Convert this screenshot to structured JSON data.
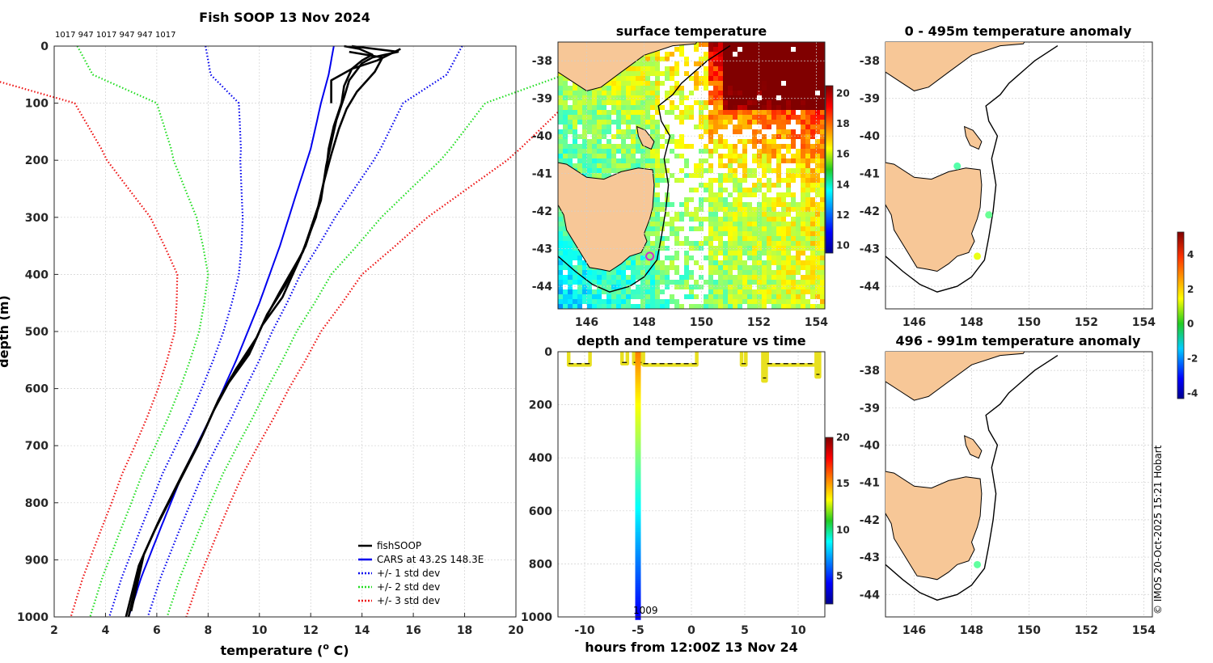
{
  "colors": {
    "land": "#f7c797",
    "fish": "#000000",
    "cars": "#0000ee",
    "std1": "#0000ee",
    "std2": "#22dd22",
    "std3": "#ee1111",
    "grid": "#d0d0d0"
  },
  "copyright": "© IMOS 20-Oct-2025 15:21 Hobart",
  "chart_data": [
    {
      "id": "profile",
      "type": "line",
      "title": "Fish SOOP 13 Nov 2024",
      "subtitle": "1017 947 1017 947 947 1017",
      "xlabel": "temperature (",
      "xlabel_sup": "o",
      "xlabel_end": " C)",
      "ylabel": "depth (m)",
      "xlim": [
        2,
        20
      ],
      "ylim": [
        0,
        1000
      ],
      "xticks": [
        2,
        4,
        6,
        8,
        10,
        12,
        14,
        16,
        18,
        20
      ],
      "yticks": [
        0,
        100,
        200,
        300,
        400,
        500,
        600,
        700,
        800,
        900,
        1000
      ],
      "legend": [
        "fishSOOP",
        "CARS at 43.2S 148.3E",
        "+/- 1 std dev",
        "+/- 2 std dev",
        "+/- 3 std dev"
      ],
      "cars_mean": [
        [
          12.9,
          0
        ],
        [
          12.7,
          50
        ],
        [
          12.4,
          100
        ],
        [
          12.0,
          180
        ],
        [
          11.5,
          250
        ],
        [
          10.8,
          350
        ],
        [
          10.0,
          450
        ],
        [
          9.1,
          550
        ],
        [
          8.1,
          650
        ],
        [
          7.0,
          750
        ],
        [
          6.1,
          850
        ],
        [
          5.4,
          930
        ],
        [
          4.9,
          1000
        ]
      ],
      "sigma": [
        [
          5,
          0
        ],
        [
          4.6,
          50
        ],
        [
          3.2,
          100
        ],
        [
          2.6,
          200
        ],
        [
          1.8,
          300
        ],
        [
          1.2,
          400
        ],
        [
          0.95,
          500
        ],
        [
          0.85,
          600
        ],
        [
          0.8,
          700
        ],
        [
          0.77,
          800
        ],
        [
          0.76,
          900
        ],
        [
          0.75,
          1000
        ]
      ],
      "fish_profiles": [
        [
          [
            13.3,
            0
          ],
          [
            13.9,
            5
          ],
          [
            14.4,
            15
          ],
          [
            14.0,
            25
          ],
          [
            13.6,
            40
          ],
          [
            13.3,
            70
          ],
          [
            13.2,
            100
          ],
          [
            12.9,
            140
          ],
          [
            12.7,
            180
          ],
          [
            12.6,
            220
          ],
          [
            12.3,
            280
          ],
          [
            11.7,
            360
          ],
          [
            10.8,
            430
          ],
          [
            10.2,
            480
          ],
          [
            9.7,
            530
          ],
          [
            8.9,
            580
          ],
          [
            8.3,
            630
          ],
          [
            7.7,
            690
          ],
          [
            6.9,
            760
          ],
          [
            6.0,
            840
          ],
          [
            5.4,
            900
          ],
          [
            4.9,
            1000
          ]
        ],
        [
          [
            13.6,
            0
          ],
          [
            14.5,
            5
          ],
          [
            15.4,
            10
          ],
          [
            14.4,
            20
          ],
          [
            14.0,
            30
          ],
          [
            13.5,
            60
          ],
          [
            13.3,
            90
          ],
          [
            13.0,
            130
          ],
          [
            12.8,
            170
          ],
          [
            12.6,
            210
          ],
          [
            12.4,
            270
          ],
          [
            11.8,
            350
          ],
          [
            11.0,
            420
          ],
          [
            10.3,
            470
          ],
          [
            9.9,
            510
          ],
          [
            9.1,
            565
          ],
          [
            8.4,
            620
          ],
          [
            7.8,
            680
          ],
          [
            7.0,
            750
          ],
          [
            6.1,
            830
          ],
          [
            5.5,
            890
          ],
          [
            5.0,
            990
          ]
        ],
        [
          [
            13.5,
            10
          ],
          [
            14.8,
            20
          ],
          [
            14.5,
            45
          ],
          [
            14.2,
            60
          ],
          [
            13.8,
            80
          ],
          [
            13.4,
            110
          ],
          [
            13.1,
            145
          ],
          [
            12.8,
            190
          ],
          [
            12.5,
            240
          ],
          [
            12.2,
            300
          ],
          [
            11.6,
            370
          ],
          [
            10.9,
            440
          ],
          [
            10.1,
            490
          ],
          [
            9.6,
            540
          ],
          [
            8.8,
            590
          ],
          [
            8.2,
            640
          ],
          [
            7.6,
            700
          ],
          [
            6.8,
            770
          ],
          [
            5.9,
            850
          ],
          [
            5.3,
            910
          ],
          [
            4.8,
            1000
          ]
        ],
        [
          [
            12.8,
            100
          ],
          [
            12.8,
            60
          ],
          [
            13.6,
            40
          ],
          [
            14.6,
            25
          ],
          [
            15.5,
            5
          ]
        ]
      ]
    },
    {
      "id": "sst",
      "type": "heatmap",
      "title": "surface temperature",
      "xticks": [
        "146",
        "148",
        "150",
        "152",
        "154"
      ],
      "yticks": [
        "-38",
        "-39",
        "-40",
        "-41",
        "-42",
        "-43",
        "-44"
      ],
      "colorbar_ticks": [
        "10",
        "12",
        "14",
        "16",
        "18",
        "20"
      ],
      "clim": [
        9.5,
        20.5
      ],
      "marker": {
        "lon": 148.2,
        "lat": -43.2
      }
    },
    {
      "id": "timeseries",
      "type": "scatter",
      "title": "depth and temperature vs time",
      "xlabel": "hours from 12:00Z 13 Nov 24",
      "xlim": [
        -12.5,
        12.5
      ],
      "ylim": [
        0,
        1000
      ],
      "xticks": [
        "-10",
        "-5",
        "0",
        "5",
        "10"
      ],
      "yticks": [
        "0",
        "200",
        "400",
        "600",
        "800",
        "1000"
      ],
      "colorbar_ticks": [
        "5",
        "10",
        "15",
        "20"
      ],
      "clim": [
        2,
        20
      ],
      "annotation": "1009",
      "deep_cast": {
        "t": -5,
        "max_depth": 990
      },
      "shallow_casts": [
        [
          -11.5,
          -9.5,
          50
        ],
        [
          -6.5,
          -6.0,
          45
        ],
        [
          -5.4,
          -5.1,
          45
        ],
        [
          -4.9,
          -4.6,
          45
        ],
        [
          -4.5,
          0.5,
          50
        ],
        [
          4.7,
          5.1,
          50
        ],
        [
          6.7,
          7.0,
          110
        ],
        [
          7.1,
          11.7,
          50
        ],
        [
          11.7,
          12.0,
          95
        ]
      ]
    },
    {
      "id": "anom_upper",
      "type": "scatter",
      "title": "0 - 495m temperature anomaly",
      "xticks": [
        "146",
        "148",
        "150",
        "152",
        "154"
      ],
      "yticks": [
        "-38",
        "-39",
        "-40",
        "-41",
        "-42",
        "-43",
        "-44"
      ],
      "points": [
        {
          "lon": 147.5,
          "lat": -40.8,
          "value": 0.1
        },
        {
          "lon": 148.6,
          "lat": -42.1,
          "value": 0.3
        },
        {
          "lon": 148.2,
          "lat": -43.2,
          "value": 1.5
        }
      ]
    },
    {
      "id": "anom_lower",
      "type": "scatter",
      "title": "496 - 991m temperature anomaly",
      "xticks": [
        "146",
        "148",
        "150",
        "152",
        "154"
      ],
      "yticks": [
        "-38",
        "-39",
        "-40",
        "-41",
        "-42",
        "-43",
        "-44"
      ],
      "points": [
        {
          "lon": 148.2,
          "lat": -43.2,
          "value": 0.2
        }
      ]
    },
    {
      "id": "anom_colorbar",
      "type": "heatmap",
      "colorbar_ticks": [
        "4",
        "2",
        "0",
        "-2",
        "-4"
      ],
      "clim": [
        -4.3,
        5.3
      ]
    }
  ]
}
